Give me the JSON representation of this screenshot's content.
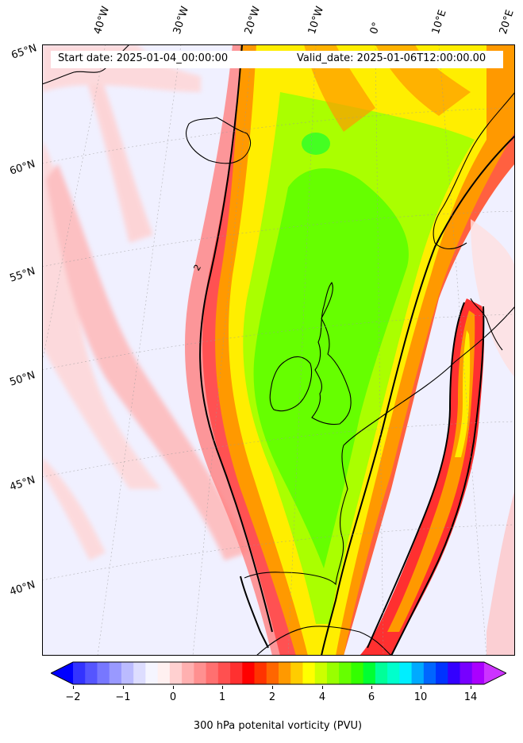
{
  "header": {
    "start_date": "Start date: 2025-01-04_00:00:00",
    "valid_date": "Valid_date: 2025-01-06T12:00:00.00"
  },
  "map": {
    "projection": "polar stereographic",
    "field": "300 hPa potential vorticity",
    "contour_value": "2",
    "longitude_labels": [
      "40°W",
      "30°W",
      "20°W",
      "10°W",
      "0°",
      "10°E",
      "20°E"
    ],
    "latitude_labels": [
      "65°N",
      "60°N",
      "55°N",
      "50°N",
      "45°N",
      "40°N"
    ],
    "colors": {
      "background_low": "#f0f0ff",
      "pv_ridge": "#ff6060",
      "pv_core": "#66ff00",
      "yellow": "#ffff00",
      "orange": "#ff9900",
      "contour": "#000000",
      "coastline": "#000000"
    }
  },
  "colorbar": {
    "ticks": [
      "−2",
      "−1",
      "0",
      "1",
      "2",
      "4",
      "6",
      "10",
      "14"
    ],
    "label": "300 hPa potenital vorticity (PVU)",
    "colors": [
      "#0000ff",
      "#3333ff",
      "#5555ff",
      "#7777ff",
      "#9999ff",
      "#bbbbff",
      "#ddddff",
      "#f5f5ff",
      "#fff0f0",
      "#ffd0d0",
      "#ffb0b0",
      "#ff9090",
      "#ff7070",
      "#ff5050",
      "#ff3030",
      "#ff0000",
      "#ff3300",
      "#ff6600",
      "#ff9900",
      "#ffcc00",
      "#ffff00",
      "#ccff00",
      "#99ff00",
      "#66ff00",
      "#33ff00",
      "#00ff33",
      "#00ff99",
      "#00ffcc",
      "#00eeff",
      "#00aaff",
      "#0066ff",
      "#0033ff",
      "#3300ff",
      "#7700ff",
      "#aa00ff",
      "#cc33ff"
    ]
  }
}
